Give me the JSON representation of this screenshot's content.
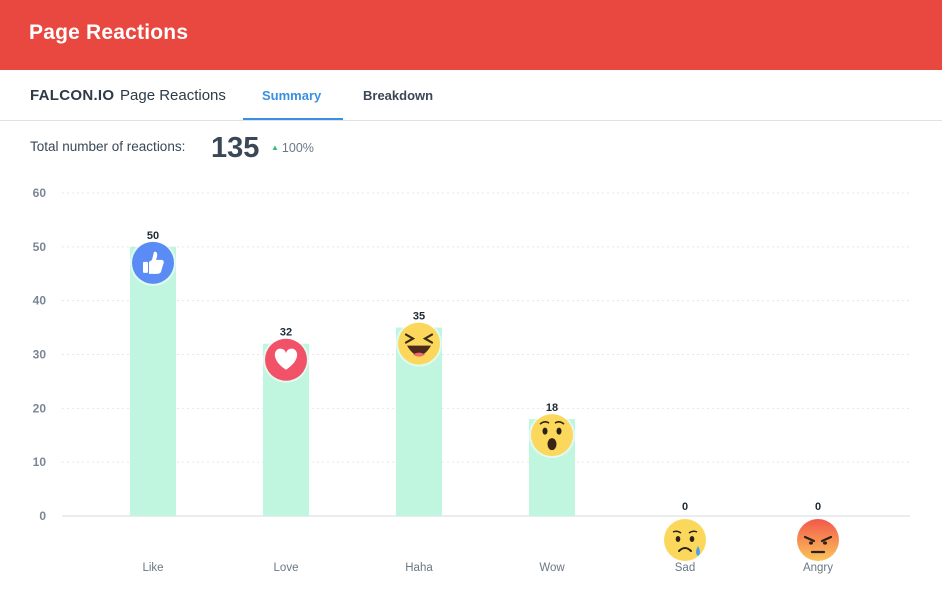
{
  "header": {
    "title": "Page Reactions"
  },
  "tabbar": {
    "brand": "FALCON.IO",
    "section": "Page Reactions",
    "tabs": [
      {
        "label": "Summary",
        "active": true
      },
      {
        "label": "Breakdown",
        "active": false
      }
    ]
  },
  "summary": {
    "label": "Total number of reactions:",
    "total": "135",
    "change": "100%",
    "change_direction": "up"
  },
  "colors": {
    "header": "#e8483f",
    "accent": "#3a8fe0",
    "bar": "#c0f5df",
    "up": "#2fc07a"
  },
  "chart_data": {
    "type": "bar",
    "categories": [
      "Like",
      "Love",
      "Haha",
      "Wow",
      "Sad",
      "Angry"
    ],
    "values": [
      50,
      32,
      35,
      18,
      0,
      0
    ],
    "icons": [
      "thumbs-up-icon",
      "heart-icon",
      "laughing-face-icon",
      "surprised-face-icon",
      "sad-face-icon",
      "angry-face-icon"
    ],
    "ylim": [
      0,
      60
    ],
    "yticks": [
      0,
      10,
      20,
      30,
      40,
      50,
      60
    ],
    "grid": true,
    "title": "",
    "xlabel": "",
    "ylabel": ""
  }
}
